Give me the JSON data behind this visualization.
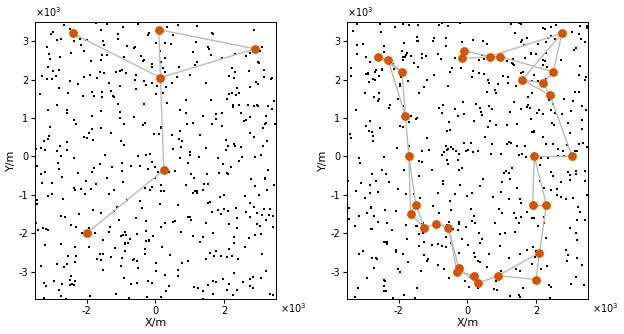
{
  "xlim": [
    -3500,
    3500
  ],
  "ylim": [
    -3700,
    3500
  ],
  "xlabel": "X/m",
  "ylabel": "Y/m",
  "x_scale": 1000,
  "y_scale": 1000,
  "xticks": [
    -2,
    0,
    2
  ],
  "yticks": [
    -3,
    -2,
    -1,
    0,
    1,
    2,
    3
  ],
  "clutter_color": "#000000",
  "track_color": "#D45500",
  "line_color": "#BBBBBB",
  "background": "#ffffff",
  "clutter_marker": "s",
  "clutter_size": 2.5,
  "track_marker_size": 40,
  "line_width": 1.0,
  "seed_clutter1": 7,
  "seed_clutter2": 99,
  "n_clutter": 500,
  "left_tracks": [
    [
      -2400,
      3200
    ],
    [
      100,
      3300
    ],
    [
      2900,
      2800
    ],
    [
      150,
      2050
    ],
    [
      250,
      -350
    ],
    [
      -2000,
      -2000
    ]
  ],
  "left_edges": [
    [
      0,
      3
    ],
    [
      3,
      1
    ],
    [
      1,
      2
    ],
    [
      2,
      3
    ],
    [
      3,
      4
    ],
    [
      4,
      5
    ]
  ],
  "right_tracks": [
    [
      -2600,
      2600
    ],
    [
      -2300,
      2500
    ],
    [
      -1900,
      2200
    ],
    [
      -1800,
      1050
    ],
    [
      -1700,
      0
    ],
    [
      -1500,
      -1250
    ],
    [
      -1650,
      -1500
    ],
    [
      -1250,
      -1850
    ],
    [
      -900,
      -1750
    ],
    [
      -550,
      -1850
    ],
    [
      -300,
      -3000
    ],
    [
      -250,
      -2900
    ],
    [
      200,
      -3100
    ],
    [
      300,
      -3300
    ],
    [
      900,
      -3100
    ],
    [
      2000,
      -3200
    ],
    [
      2100,
      -2500
    ],
    [
      2300,
      -1250
    ],
    [
      1900,
      -1250
    ],
    [
      1950,
      0
    ],
    [
      3050,
      0
    ],
    [
      2400,
      1600
    ],
    [
      2200,
      1900
    ],
    [
      1600,
      2000
    ],
    [
      2500,
      2200
    ],
    [
      2750,
      3200
    ],
    [
      950,
      2600
    ],
    [
      650,
      2600
    ],
    [
      -150,
      2550
    ],
    [
      -100,
      2750
    ]
  ],
  "right_edges": [
    [
      0,
      1
    ],
    [
      0,
      2
    ],
    [
      1,
      2
    ],
    [
      1,
      3
    ],
    [
      2,
      3
    ],
    [
      3,
      4
    ],
    [
      4,
      5
    ],
    [
      4,
      6
    ],
    [
      5,
      6
    ],
    [
      5,
      7
    ],
    [
      6,
      7
    ],
    [
      7,
      8
    ],
    [
      8,
      9
    ],
    [
      9,
      10
    ],
    [
      9,
      11
    ],
    [
      10,
      11
    ],
    [
      10,
      12
    ],
    [
      11,
      13
    ],
    [
      12,
      13
    ],
    [
      13,
      14
    ],
    [
      14,
      15
    ],
    [
      14,
      16
    ],
    [
      15,
      16
    ],
    [
      16,
      17
    ],
    [
      17,
      18
    ],
    [
      17,
      19
    ],
    [
      18,
      19
    ],
    [
      19,
      20
    ],
    [
      20,
      21
    ],
    [
      21,
      22
    ],
    [
      21,
      23
    ],
    [
      22,
      23
    ],
    [
      22,
      24
    ],
    [
      23,
      25
    ],
    [
      24,
      25
    ],
    [
      24,
      26
    ],
    [
      25,
      27
    ],
    [
      26,
      27
    ],
    [
      26,
      28
    ],
    [
      27,
      29
    ],
    [
      28,
      29
    ]
  ]
}
